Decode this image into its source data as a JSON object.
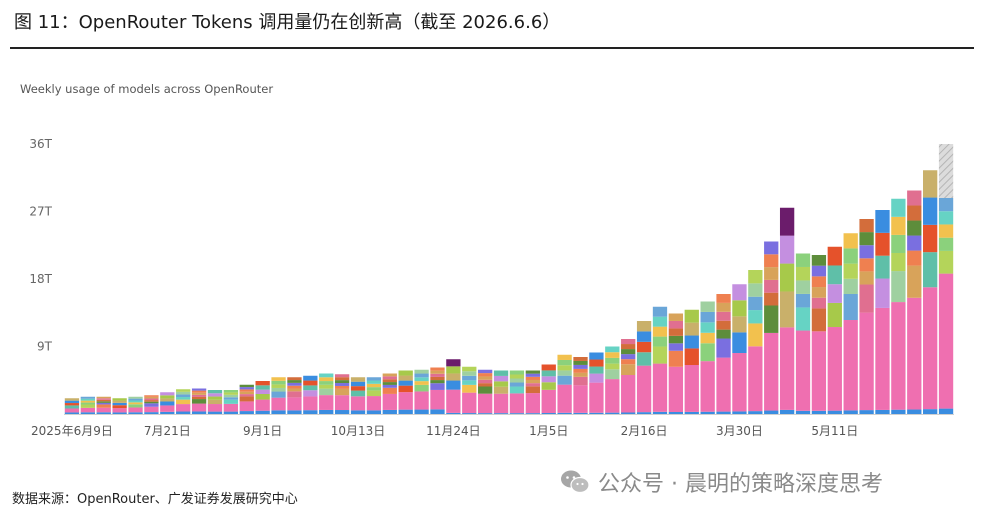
{
  "figure": {
    "title": "图 11：OpenRouter Tokens 调用量仍在创新高（截至 2026.6.6）",
    "source": "数据来源：OpenRouter、广发证券发展研究中心",
    "watermark": "公众号 · 晨明的策略深度思考",
    "watermark_icon": "wechat-icon"
  },
  "chart_data": {
    "type": "bar",
    "stacked": true,
    "title": "Weekly usage of models across OpenRouter",
    "xlabel": "",
    "ylabel": "",
    "ylim": [
      0,
      36
    ],
    "yticks": [
      9,
      18,
      27,
      36
    ],
    "ytick_labels": [
      "9T",
      "18T",
      "27T",
      "36T"
    ],
    "xtick_labels": [
      {
        "label": "2025年6月9日",
        "index": 0
      },
      {
        "label": "7月21日",
        "index": 6
      },
      {
        "label": "9月1日",
        "index": 12
      },
      {
        "label": "10月13日",
        "index": 18
      },
      {
        "label": "11月24日",
        "index": 24
      },
      {
        "label": "1月5日",
        "index": 30
      },
      {
        "label": "2月16日",
        "index": 36
      },
      {
        "label": "3月30日",
        "index": 42
      },
      {
        "label": "5月11日",
        "index": 48
      }
    ],
    "grid": false,
    "legend": "none",
    "totals": [
      2.1,
      2.3,
      2.3,
      2.1,
      2.3,
      2.5,
      2.9,
      3.3,
      3.4,
      3.2,
      3.2,
      3.9,
      4.4,
      4.9,
      4.9,
      5.1,
      5.4,
      5.3,
      4.9,
      4.9,
      5.4,
      5.8,
      5.9,
      6.2,
      7.3,
      6.3,
      5.9,
      5.8,
      5.8,
      5.8,
      6.6,
      7.9,
      7.6,
      8.2,
      9.0,
      10.0,
      12.4,
      14.3,
      13.4,
      13.9,
      15.0,
      16.0,
      17.3,
      19.2,
      23.0,
      27.5,
      21.4,
      21.2,
      22.3,
      24.1,
      26.0,
      27.2,
      28.7,
      29.8,
      32.5,
      36.0
    ],
    "colors": {
      "primary": "#ef6fb0",
      "teal": "#5fbfa8",
      "lime": "#b4d45a",
      "orange": "#ef8050",
      "red_orange": "#e5522b",
      "olive": "#5d8d3b",
      "purple": "#6b1c6b",
      "blue": "#3a8de0",
      "yellow": "#f2c14e",
      "gray_hatch": "#cccccc"
    }
  }
}
